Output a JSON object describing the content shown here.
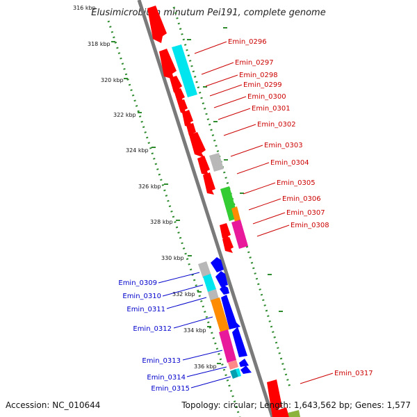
{
  "title": "Elusimicrobium minutum Pei191, complete genome",
  "footer": {
    "accession": "Accession: NC_010644",
    "summary": "Topology: circular; Length: 1,643,562 bp; Genes: 1,577"
  },
  "colors": {
    "backbone": "#7a7a7a",
    "dotted_guides": "#2e8b2e",
    "label_forward": "#cc0000",
    "label_reverse": "#0000cc",
    "red": "#ff0000",
    "blue": "#0000ff",
    "cyan": "#00e5ee",
    "gray": "#b8b8b8",
    "green": "#33cc33",
    "orange": "#ff8c00",
    "magenta": "#e8199a",
    "pink": "#ff8888",
    "teal": "#00a0b0",
    "olive": "#8db33a"
  },
  "ticks": [
    "316 kbp",
    "318 kbp",
    "320 kbp",
    "322 kbp",
    "324 kbp",
    "326 kbp",
    "328 kbp",
    "330 kbp",
    "332 kbp",
    "334 kbp",
    "336 kbp"
  ],
  "forward_labels": [
    "Emin_0296",
    "Emin_0297",
    "Emin_0298",
    "Emin_0299",
    "Emin_0300",
    "Emin_0301",
    "Emin_0302",
    "Emin_0303",
    "Emin_0304",
    "Emin_0305",
    "Emin_0306",
    "Emin_0307",
    "Emin_0308",
    "Emin_0317"
  ],
  "reverse_labels": [
    "Emin_0309",
    "Emin_0310",
    "Emin_0311",
    "Emin_0312",
    "Emin_0313",
    "Emin_0314",
    "Emin_0315"
  ]
}
